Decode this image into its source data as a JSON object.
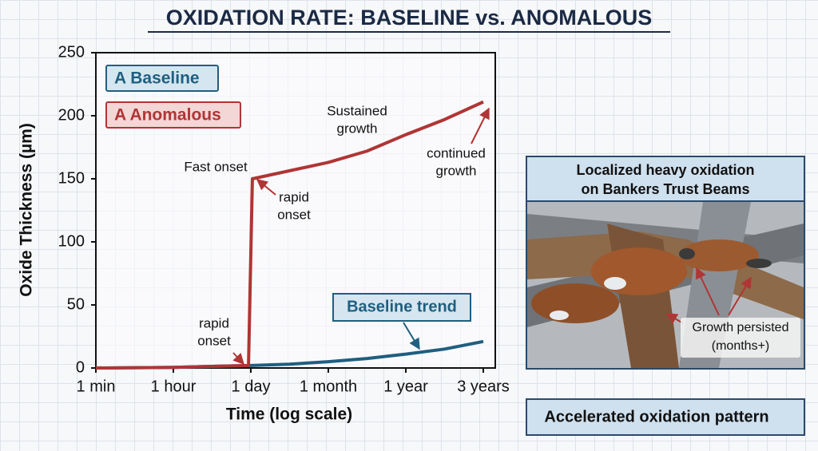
{
  "chart_data": {
    "type": "line",
    "title": "OXIDATION RATE: BASELINE vs. ANOMALOUS",
    "x_label": "Time (log scale)",
    "y_label": "Oxide Thickness (µm)",
    "xlim": [
      0,
      5
    ],
    "xticks": [
      {
        "value": 0,
        "label": "1 min"
      },
      {
        "value": 1,
        "label": "1 hour"
      },
      {
        "value": 2,
        "label": "1 day"
      },
      {
        "value": 3,
        "label": "1 month"
      },
      {
        "value": 4,
        "label": "1 year"
      },
      {
        "value": 5,
        "label": "3 years"
      }
    ],
    "ylim": [
      0,
      250
    ],
    "yticks": [
      0,
      50,
      100,
      150,
      200,
      250
    ],
    "series": [
      {
        "name": "A Baseline",
        "color": "#1f5f80",
        "x": [
          0,
          1,
          2,
          2.5,
          3,
          3.5,
          4,
          4.5,
          5
        ],
        "values": [
          0,
          0.5,
          2,
          3,
          5,
          7.5,
          11,
          15,
          21
        ]
      },
      {
        "name": "A Anomalous",
        "color": "#b03535",
        "x": [
          0,
          1,
          1.97,
          2.02,
          3,
          3.5,
          4,
          4.5,
          5
        ],
        "values": [
          0,
          0.5,
          2,
          150,
          163,
          172,
          185,
          197,
          211
        ]
      }
    ],
    "annotations": [
      {
        "lines": [
          "Fast onset"
        ]
      },
      {
        "lines": [
          "rapid",
          "onset"
        ]
      },
      {
        "lines": [
          "Sustained",
          "growth"
        ]
      },
      {
        "lines": [
          "continued",
          "growth"
        ]
      },
      {
        "lines": [
          "rapid",
          "onset"
        ]
      },
      {
        "lines": [
          "Baseline trend"
        ]
      }
    ],
    "panel": {
      "title": [
        "Localized heavy oxidation",
        "on Bankers Trust Beams"
      ],
      "callout": [
        "Growth persisted",
        "(months+)"
      ],
      "footer": "Accelerated oxidation pattern"
    }
  }
}
